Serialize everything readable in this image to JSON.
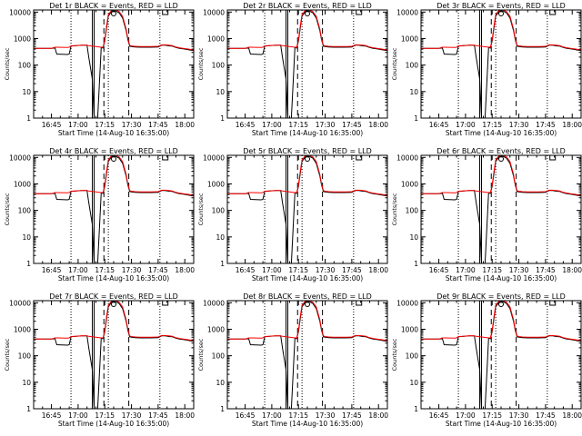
{
  "figure": {
    "background": "#ffffff",
    "frame_color": "#000000",
    "events_color": "#000000",
    "lld_color": "#ff0000",
    "ylabel": "Counts/sec",
    "xlabel": "Start Time (14-Aug-10 16:35:00)"
  },
  "chart_data": [
    {
      "type": "line",
      "title": "Det 1r BLACK = Events, RED = LLD",
      "detector": "1r"
    },
    {
      "type": "line",
      "title": "Det 2r BLACK = Events, RED = LLD",
      "detector": "2r"
    },
    {
      "type": "line",
      "title": "Det 3r BLACK = Events, RED = LLD",
      "detector": "3r"
    },
    {
      "type": "line",
      "title": "Det 4r BLACK = Events, RED = LLD",
      "detector": "4r"
    },
    {
      "type": "line",
      "title": "Det 5r BLACK = Events, RED = LLD",
      "detector": "5r"
    },
    {
      "type": "line",
      "title": "Det 6r BLACK = Events, RED = LLD",
      "detector": "6r"
    },
    {
      "type": "line",
      "title": "Det 7r BLACK = Events, RED = LLD",
      "detector": "7r"
    },
    {
      "type": "line",
      "title": "Det 8r BLACK = Events, RED = LLD",
      "detector": "8r"
    },
    {
      "type": "line",
      "title": "Det 9r BLACK = Events, RED = LLD",
      "detector": "9r"
    }
  ],
  "shared": {
    "yscale": "log",
    "ylim": [
      1,
      12000
    ],
    "yticks": [
      1,
      10,
      100,
      1000,
      10000
    ],
    "ytick_labels": [
      "1",
      "10",
      "100",
      "1000",
      "10000"
    ],
    "xlim_minutes": [
      0,
      90
    ],
    "xticks_minutes": [
      10,
      25,
      40,
      55,
      70,
      85
    ],
    "xtick_labels": [
      "16:45",
      "17:00",
      "17:15",
      "17:30",
      "17:45",
      "18:00"
    ],
    "dotted_lines_minutes": [
      21,
      42,
      71
    ],
    "solid_lines_minutes": [
      33,
      34
    ],
    "dashed_lines_minutes": [
      39.5,
      53.5
    ],
    "markers": [
      {
        "type": "circle",
        "minute": 45
      },
      {
        "type": "square",
        "minute": 74
      }
    ],
    "events_series": {
      "name": "Events",
      "x": [
        0,
        10,
        12,
        13,
        19,
        20,
        21,
        27,
        28,
        30,
        31,
        33,
        34,
        36,
        38,
        39,
        40,
        41,
        42,
        44,
        46,
        48,
        50,
        52,
        53,
        54,
        55,
        57,
        60,
        62,
        66,
        70,
        72,
        74,
        76,
        78,
        80,
        82,
        84,
        86,
        88,
        90
      ],
      "y": [
        430,
        430,
        440,
        260,
        250,
        260,
        520,
        560,
        560,
        560,
        200,
        30,
        1,
        1,
        460,
        440,
        800,
        2500,
        7000,
        11000,
        11000,
        9500,
        6000,
        2000,
        900,
        520,
        500,
        480,
        470,
        470,
        470,
        480,
        560,
        560,
        530,
        520,
        460,
        430,
        410,
        390,
        370,
        350
      ]
    },
    "lld_series": {
      "name": "LLD",
      "x": [
        0,
        10,
        12,
        13,
        19,
        20,
        21,
        27,
        28,
        30,
        31,
        33,
        34,
        36,
        38,
        39,
        40,
        41,
        42,
        44,
        46,
        48,
        50,
        52,
        53,
        54,
        55,
        57,
        60,
        62,
        66,
        70,
        72,
        74,
        76,
        78,
        80,
        82,
        84,
        86,
        88,
        90
      ],
      "y": [
        430,
        430,
        470,
        470,
        460,
        470,
        530,
        560,
        560,
        560,
        540,
        520,
        510,
        490,
        470,
        470,
        900,
        3000,
        8000,
        12000,
        12000,
        10500,
        7000,
        2300,
        1000,
        560,
        530,
        510,
        500,
        500,
        500,
        510,
        580,
        580,
        560,
        540,
        480,
        450,
        430,
        410,
        390,
        370
      ]
    }
  }
}
